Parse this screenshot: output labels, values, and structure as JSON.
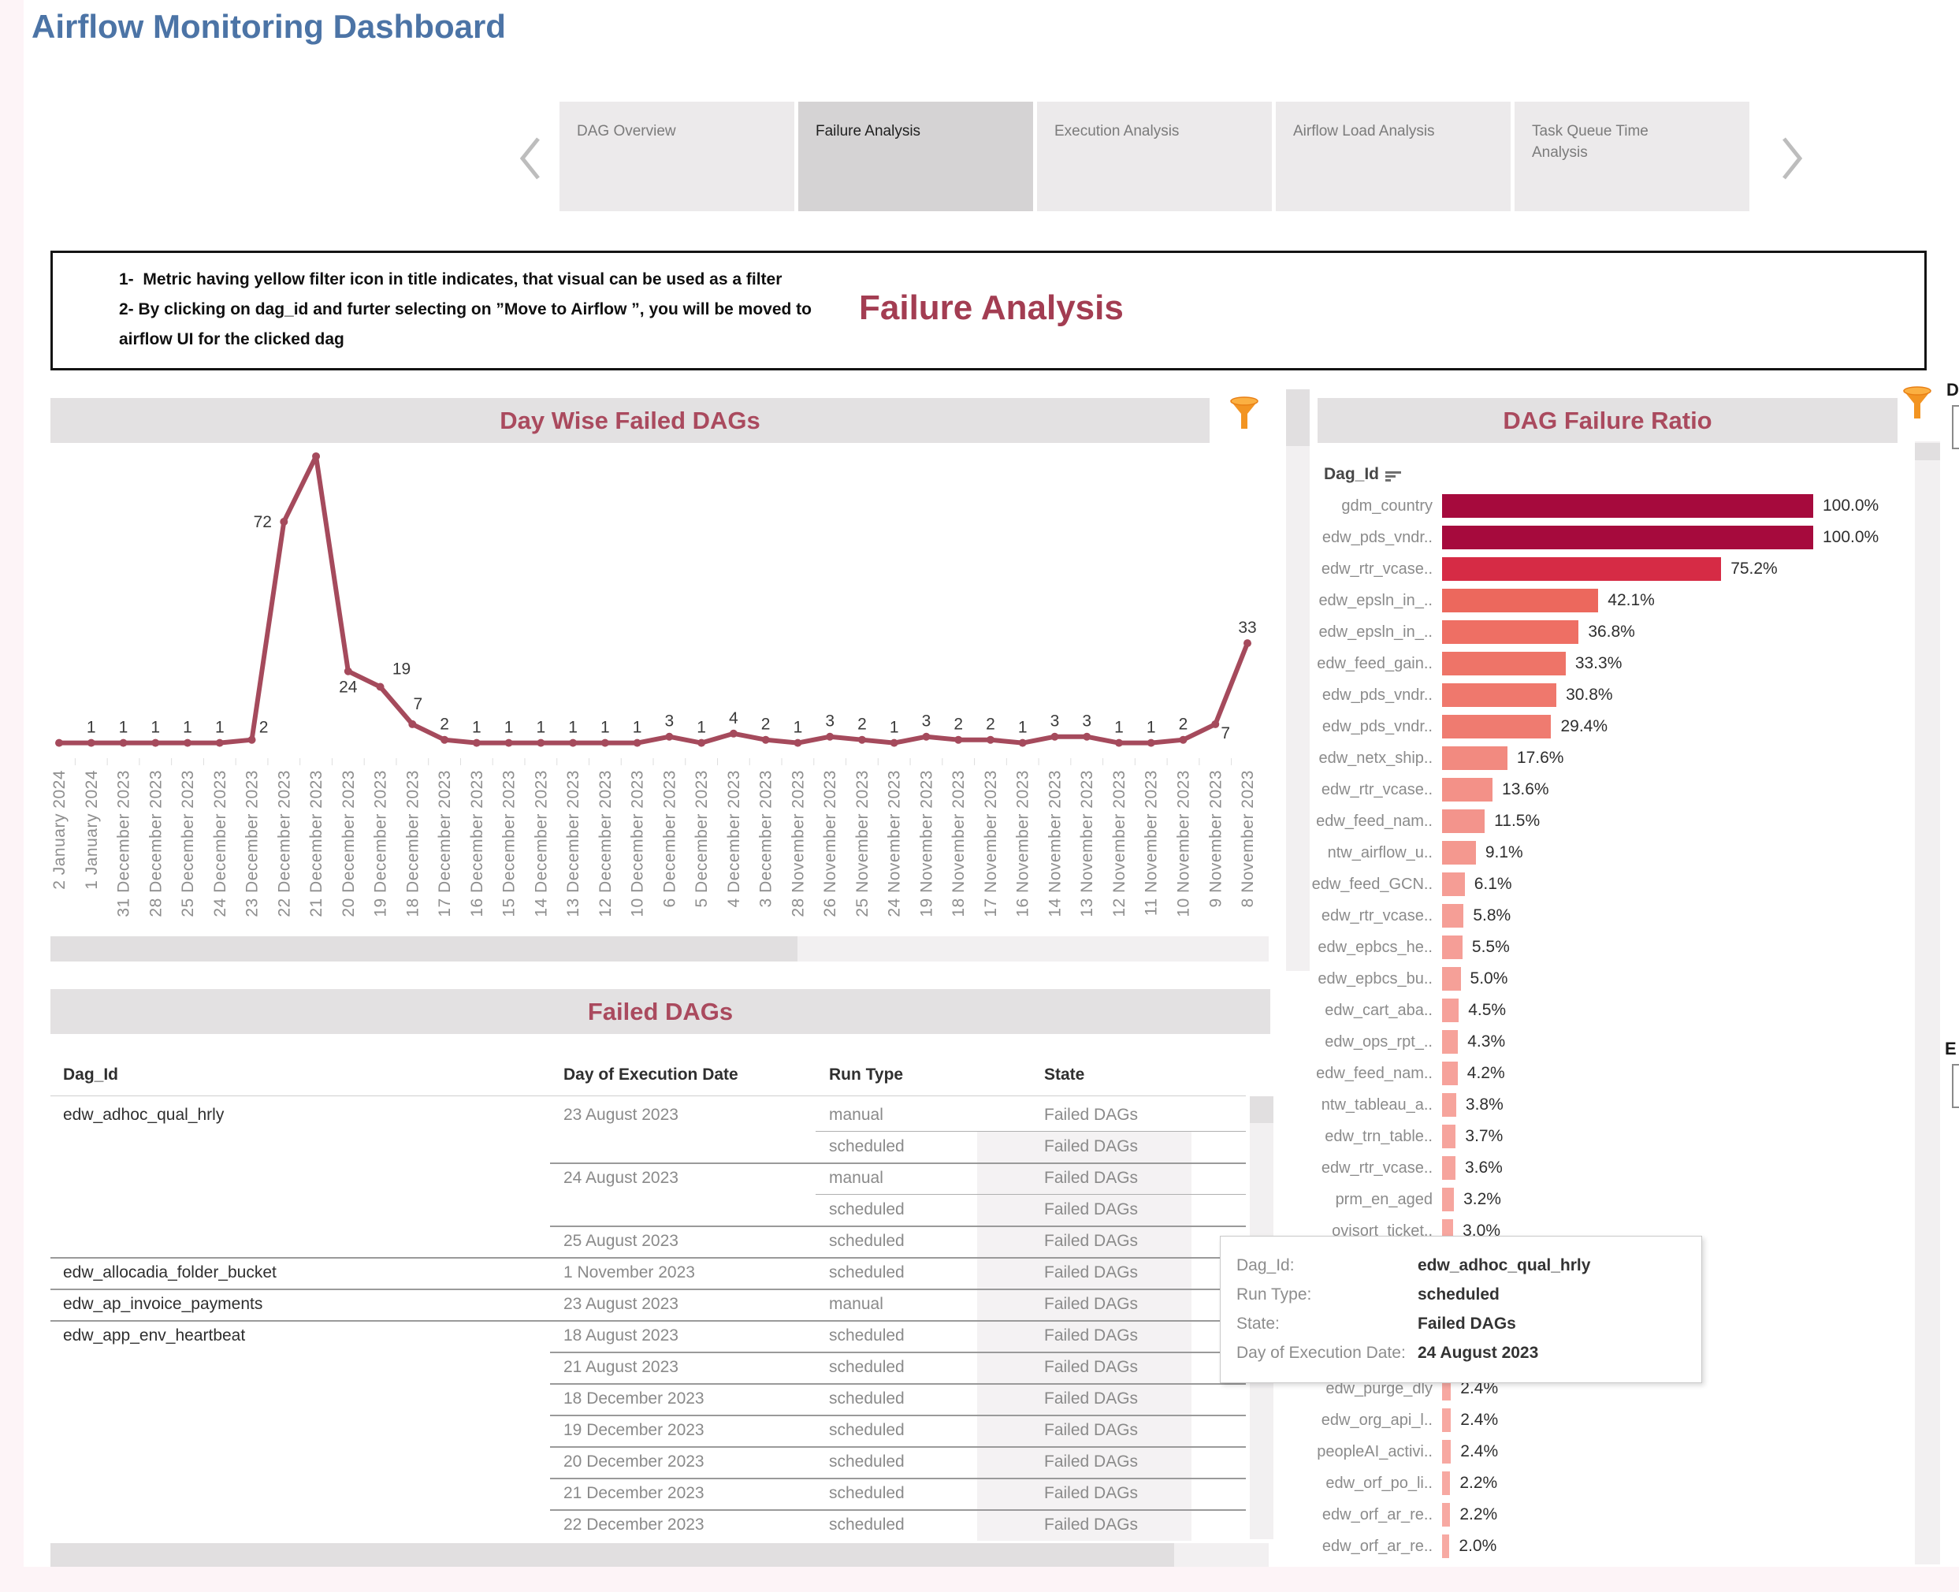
{
  "page": {
    "title": "Airflow Monitoring Dashboard"
  },
  "tabs": {
    "items": [
      {
        "label": "DAG Overview",
        "active": false
      },
      {
        "label": "Failure Analysis",
        "active": true
      },
      {
        "label": "Execution Analysis",
        "active": false
      },
      {
        "label": "Airflow Load Analysis",
        "active": false
      },
      {
        "label": "Task Queue Time Analysis",
        "active": false
      }
    ]
  },
  "notes": {
    "line1": "1-  Metric having yellow filter icon in title indicates, that visual can be used as a filter",
    "line2": "2- By clicking on dag_id and furter selecting on ”Move to Airflow ”, you will be moved to",
    "line3": "airflow UI for the clicked dag"
  },
  "section": {
    "heading": "Failure Analysis"
  },
  "colors": {
    "title_blue": "#4c74a6",
    "maroon": "#a54a5c",
    "panel_title": "#aa4a5e",
    "header_bg": "#e3e1e2",
    "funnel_orange": "#f29422",
    "funnel_top": "#fbb042",
    "axis_gray": "#8e8e8e",
    "label_dark": "#3a3a3a"
  },
  "chart_data": [
    {
      "type": "line",
      "title": "Day Wise Failed DAGs",
      "xlabel": "Day of Execution Date",
      "ylabel": "Failed DAG count",
      "ylim": [
        0,
        96
      ],
      "line_color": "#a54a5c",
      "categories": [
        "2 January 2024",
        "1 January 2024",
        "31 December 2023",
        "28 December 2023",
        "25 December 2023",
        "24 December 2023",
        "23 December 2023",
        "22 December 2023",
        "21 December 2023",
        "20 December 2023",
        "19 December 2023",
        "18 December 2023",
        "17 December 2023",
        "16 December 2023",
        "15 December 2023",
        "14 December 2023",
        "13 December 2023",
        "12 December 2023",
        "10 December 2023",
        "6 December 2023",
        "5 December 2023",
        "4 December 2023",
        "3 December 2023",
        "28 November 2023",
        "26 November 2023",
        "25 November 2023",
        "24 November 2023",
        "19 November 2023",
        "18 November 2023",
        "17 November 2023",
        "16 November 2023",
        "14 November 2023",
        "13 November 2023",
        "12 November 2023",
        "11 November 2023",
        "10 November 2023",
        "9 November 2023",
        "8 November 2023"
      ],
      "values": [
        1,
        1,
        1,
        1,
        1,
        1,
        2,
        72,
        93,
        24,
        19,
        7,
        2,
        1,
        1,
        1,
        1,
        1,
        1,
        3,
        1,
        4,
        2,
        1,
        3,
        2,
        1,
        3,
        2,
        2,
        1,
        3,
        3,
        1,
        1,
        2,
        7,
        33
      ],
      "point_labels": [
        "1",
        "1",
        "1",
        "1",
        "1",
        "1",
        "2",
        "72",
        "",
        "24",
        "19",
        "7",
        "2",
        "1",
        "1",
        "1",
        "1",
        "1",
        "1",
        "3",
        "1",
        "4",
        "2",
        "1",
        "3",
        "2",
        "1",
        "3",
        "2",
        "2",
        "1",
        "3",
        "3",
        "1",
        "1",
        "2",
        "7",
        "33"
      ],
      "label_offsets": {
        "0": [
          -27,
          -12
        ],
        "6": [
          15,
          -9
        ],
        "7": [
          -27,
          7
        ],
        "9": [
          0,
          27
        ],
        "10": [
          27,
          -16
        ],
        "11": [
          7,
          -19
        ],
        "36": [
          13,
          18
        ]
      }
    },
    {
      "type": "bar",
      "title": "DAG Failure Ratio",
      "header_label": "Dag_Id",
      "unit": "%",
      "xlim": [
        0,
        100
      ],
      "rows": [
        {
          "label": "gdm_country",
          "pct": 100.0,
          "value_label": "100.0%",
          "color": "#a60a3d"
        },
        {
          "label": "edw_pds_vndr..",
          "pct": 100.0,
          "value_label": "100.0%",
          "color": "#a60a3d"
        },
        {
          "label": "edw_rtr_vcase..",
          "pct": 75.2,
          "value_label": "75.2%",
          "color": "#d62b45"
        },
        {
          "label": "edw_epsln_in_..",
          "pct": 42.1,
          "value_label": "42.1%",
          "color": "#ec685d"
        },
        {
          "label": "edw_epsln_in_..",
          "pct": 36.8,
          "value_label": "36.8%",
          "color": "#ee6f64"
        },
        {
          "label": "edw_feed_gain..",
          "pct": 33.3,
          "value_label": "33.3%",
          "color": "#ee7468"
        },
        {
          "label": "edw_pds_vndr..",
          "pct": 30.8,
          "value_label": "30.8%",
          "color": "#ef786d"
        },
        {
          "label": "edw_pds_vndr..",
          "pct": 29.4,
          "value_label": "29.4%",
          "color": "#ef7b70"
        },
        {
          "label": "edw_netx_ship..",
          "pct": 17.6,
          "value_label": "17.6%",
          "color": "#f28a80"
        },
        {
          "label": "edw_rtr_vcase..",
          "pct": 13.6,
          "value_label": "13.6%",
          "color": "#f39188"
        },
        {
          "label": "edw_feed_nam..",
          "pct": 11.5,
          "value_label": "11.5%",
          "color": "#f3948c"
        },
        {
          "label": "ntw_airflow_u..",
          "pct": 9.1,
          "value_label": "9.1%",
          "color": "#f4988f"
        },
        {
          "label": "edw_feed_GCN..",
          "pct": 6.1,
          "value_label": "6.1%",
          "color": "#f59d95"
        },
        {
          "label": "edw_rtr_vcase..",
          "pct": 5.8,
          "value_label": "5.8%",
          "color": "#f59e96"
        },
        {
          "label": "edw_epbcs_he..",
          "pct": 5.5,
          "value_label": "5.5%",
          "color": "#f59e97"
        },
        {
          "label": "edw_epbcs_bu..",
          "pct": 5.0,
          "value_label": "5.0%",
          "color": "#f5a098"
        },
        {
          "label": "edw_cart_aba..",
          "pct": 4.5,
          "value_label": "4.5%",
          "color": "#f6a19a"
        },
        {
          "label": "edw_ops_rpt_..",
          "pct": 4.3,
          "value_label": "4.3%",
          "color": "#f6a29a"
        },
        {
          "label": "edw_feed_nam..",
          "pct": 4.2,
          "value_label": "4.2%",
          "color": "#f6a29b"
        },
        {
          "label": "ntw_tableau_a..",
          "pct": 3.8,
          "value_label": "3.8%",
          "color": "#f6a49c"
        },
        {
          "label": "edw_trn_table..",
          "pct": 3.7,
          "value_label": "3.7%",
          "color": "#f6a49d"
        },
        {
          "label": "edw_rtr_vcase..",
          "pct": 3.6,
          "value_label": "3.6%",
          "color": "#f6a49d"
        },
        {
          "label": "prm_en_aged",
          "pct": 3.2,
          "value_label": "3.2%",
          "color": "#f6a59e"
        },
        {
          "label": "ovisort_ticket..",
          "pct": 3.0,
          "value_label": "3.0%",
          "color": "#f7a69f"
        },
        {
          "label": "",
          "pct": null,
          "value_label": "",
          "color": ""
        },
        {
          "label": "",
          "pct": null,
          "value_label": "",
          "color": ""
        },
        {
          "label": "",
          "pct": null,
          "value_label": "",
          "color": ""
        },
        {
          "label": "",
          "pct": null,
          "value_label": "",
          "color": ""
        },
        {
          "label": "edw_purge_dly",
          "pct": 2.4,
          "value_label": "2.4%",
          "color": "#f7a8a1"
        },
        {
          "label": "edw_org_api_l..",
          "pct": 2.4,
          "value_label": "2.4%",
          "color": "#f7a8a1"
        },
        {
          "label": "peopleAI_activi..",
          "pct": 2.4,
          "value_label": "2.4%",
          "color": "#f7a8a1"
        },
        {
          "label": "edw_orf_po_li..",
          "pct": 2.2,
          "value_label": "2.2%",
          "color": "#f7a9a2"
        },
        {
          "label": "edw_orf_ar_re..",
          "pct": 2.2,
          "value_label": "2.2%",
          "color": "#f7a9a2"
        },
        {
          "label": "edw_orf_ar_re..",
          "pct": 2.0,
          "value_label": "2.0%",
          "color": "#f7aaa3"
        }
      ]
    }
  ],
  "failed_dags_table": {
    "title": "Failed DAGs",
    "columns": {
      "dag": "Dag_Id",
      "date": "Day of Execution Date",
      "run": "Run Type",
      "state": "State"
    },
    "rows": [
      {
        "dag": "edw_adhoc_qual_hrly",
        "date": "23 August 2023",
        "run": "manual",
        "state": "Failed DAGs",
        "divider": "none",
        "shade": false
      },
      {
        "dag": "",
        "date": "",
        "run": "scheduled",
        "state": "Failed DAGs",
        "divider": "run",
        "shade": true
      },
      {
        "dag": "",
        "date": "24 August 2023",
        "run": "manual",
        "state": "Failed DAGs",
        "divider": "date",
        "shade": true
      },
      {
        "dag": "",
        "date": "",
        "run": "scheduled",
        "state": "Failed DAGs",
        "divider": "run",
        "shade": true
      },
      {
        "dag": "",
        "date": "25 August 2023",
        "run": "scheduled",
        "state": "Failed DAGs",
        "divider": "date",
        "shade": true
      },
      {
        "dag": "edw_allocadia_folder_bucket",
        "date": "1 November 2023",
        "run": "scheduled",
        "state": "Failed DAGs",
        "divider": "full",
        "shade": true
      },
      {
        "dag": "edw_ap_invoice_payments",
        "date": "23 August 2023",
        "run": "manual",
        "state": "Failed DAGs",
        "divider": "full",
        "shade": true
      },
      {
        "dag": "edw_app_env_heartbeat",
        "date": "18 August 2023",
        "run": "scheduled",
        "state": "Failed DAGs",
        "divider": "full",
        "shade": true
      },
      {
        "dag": "",
        "date": "21 August 2023",
        "run": "scheduled",
        "state": "Failed DAGs",
        "divider": "date",
        "shade": true
      },
      {
        "dag": "",
        "date": "18 December 2023",
        "run": "scheduled",
        "state": "Failed DAGs",
        "divider": "date",
        "shade": true
      },
      {
        "dag": "",
        "date": "19 December 2023",
        "run": "scheduled",
        "state": "Failed DAGs",
        "divider": "date",
        "shade": true
      },
      {
        "dag": "",
        "date": "20 December 2023",
        "run": "scheduled",
        "state": "Failed DAGs",
        "divider": "date",
        "shade": true
      },
      {
        "dag": "",
        "date": "21 December 2023",
        "run": "scheduled",
        "state": "Failed DAGs",
        "divider": "date",
        "shade": true
      },
      {
        "dag": "",
        "date": "22 December 2023",
        "run": "scheduled",
        "state": "Failed DAGs",
        "divider": "date",
        "shade": true
      }
    ]
  },
  "tooltip": {
    "fields": [
      {
        "label": "Dag_Id:",
        "value": "edw_adhoc_qual_hrly",
        "bold": false
      },
      {
        "label": "Run Type:",
        "value": "scheduled",
        "bold": false
      },
      {
        "label": "State:",
        "value": "Failed DAGs",
        "bold": false
      },
      {
        "label": "Day of Execution Date:",
        "value": "24 August 2023",
        "bold": true
      }
    ]
  },
  "edge_fragments": {
    "d": "D",
    "e": "E"
  }
}
